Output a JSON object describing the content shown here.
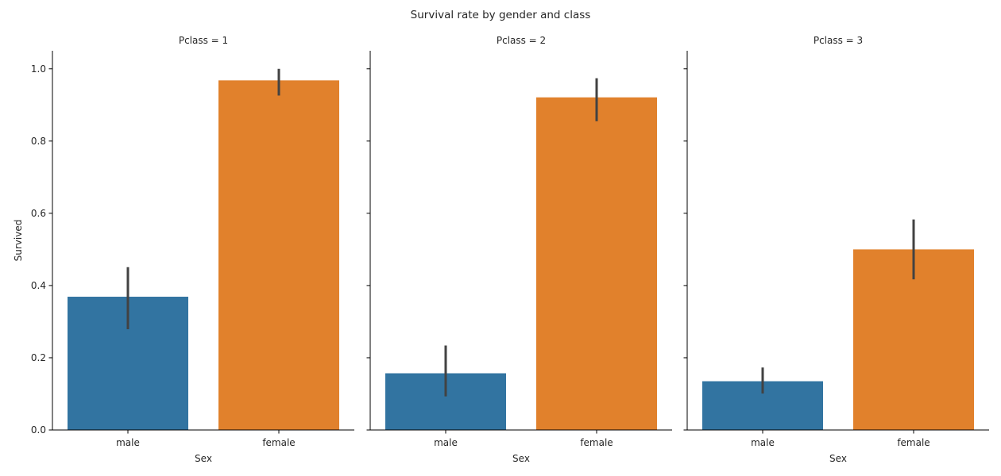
{
  "chart_data": {
    "type": "bar",
    "title": "Survival rate by gender and class",
    "xlabel": "Sex",
    "ylabel": "Survived",
    "categories": [
      "male",
      "female"
    ],
    "ylim": [
      0,
      1.05
    ],
    "yticks": [
      0.0,
      0.2,
      0.4,
      0.6,
      0.8,
      1.0
    ],
    "ytick_labels": [
      "0.0",
      "0.2",
      "0.4",
      "0.6",
      "0.8",
      "1.0"
    ],
    "grid": false,
    "colors": {
      "male": "#3274a1",
      "female": "#e1812c"
    },
    "facets": [
      {
        "title": "Pclass = 1",
        "values": [
          0.369,
          0.968
        ],
        "ci": [
          [
            0.279,
            0.451
          ],
          [
            0.926,
            1.0
          ]
        ]
      },
      {
        "title": "Pclass = 2",
        "values": [
          0.157,
          0.921
        ],
        "ci": [
          [
            0.093,
            0.234
          ],
          [
            0.855,
            0.974
          ]
        ]
      },
      {
        "title": "Pclass = 3",
        "values": [
          0.135,
          0.5
        ],
        "ci": [
          [
            0.101,
            0.173
          ],
          [
            0.417,
            0.583
          ]
        ]
      }
    ]
  }
}
